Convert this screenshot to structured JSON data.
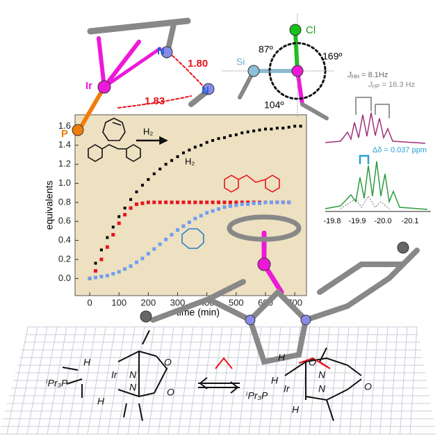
{
  "chart_data": {
    "type": "scatter",
    "x_label": "time (min)",
    "y_label": "equivalents",
    "annotations": [
      "H₂"
    ],
    "x": [
      0,
      20,
      40,
      60,
      80,
      100,
      120,
      140,
      160,
      180,
      200,
      220,
      240,
      260,
      280,
      300,
      320,
      340,
      360,
      380,
      400,
      420,
      440,
      460,
      480,
      500,
      520,
      540,
      560,
      580,
      600,
      620,
      640,
      660,
      680,
      700,
      720
    ],
    "series": [
      {
        "name": "H₂",
        "color": "#000000",
        "values": [
          0,
          0.16,
          0.3,
          0.43,
          0.54,
          0.65,
          0.74,
          0.83,
          0.91,
          0.98,
          1.04,
          1.1,
          1.15,
          1.2,
          1.24,
          1.28,
          1.32,
          1.35,
          1.38,
          1.4,
          1.43,
          1.45,
          1.47,
          1.48,
          1.5,
          1.51,
          1.53,
          1.54,
          1.55,
          1.56,
          1.57,
          1.57,
          1.58,
          1.58,
          1.59,
          1.6,
          1.6
        ]
      },
      {
        "color": "#e8141c",
        "values": [
          0,
          0.08,
          0.2,
          0.33,
          0.46,
          0.58,
          0.67,
          0.74,
          0.78,
          0.79,
          0.8,
          0.8,
          0.8,
          0.8,
          0.8,
          0.8,
          0.8,
          0.8,
          0.8,
          0.8,
          0.8,
          0.8,
          0.8,
          0.8,
          0.8,
          0.8,
          0.8,
          0.8,
          0.8,
          0.8,
          0.8,
          0.8,
          0.8,
          0.8,
          0.8,
          null,
          null
        ]
      },
      {
        "color": "#6f9ef0",
        "values": [
          0,
          0.01,
          0.02,
          0.03,
          0.05,
          0.07,
          0.1,
          0.13,
          0.17,
          0.21,
          0.26,
          0.31,
          0.36,
          0.41,
          0.46,
          0.51,
          0.55,
          0.59,
          0.63,
          0.66,
          0.69,
          0.71,
          0.73,
          0.75,
          0.76,
          0.77,
          0.78,
          0.78,
          0.79,
          0.79,
          0.8,
          0.8,
          0.8,
          0.8,
          0.8,
          null,
          null
        ]
      }
    ],
    "xlim": [
      -50,
      740
    ],
    "ylim": [
      -0.18,
      1.72
    ],
    "xticks": [
      0,
      100,
      200,
      300,
      400,
      500,
      600,
      700
    ],
    "yticks": [
      {
        "value": 0,
        "label": "0.0"
      },
      0.2,
      0.4,
      0.6,
      0.8,
      {
        "value": 1,
        "label": "1.0"
      },
      1.2,
      1.4,
      1.6
    ]
  },
  "structure_labels": [
    "N",
    "1.80",
    "Ir",
    "1.83",
    "N",
    "P",
    "Cl",
    "Si",
    "87º",
    "169º",
    "104º"
  ],
  "nmr": {
    "coupling_hh": {
      "symbol": "J",
      "sub": "HH",
      "text": " = 8.1Hz"
    },
    "coupling_hp": {
      "symbol": "J",
      "sub": "HP",
      "text": " = 16.3 Hz"
    },
    "shift_difference": "Δδ = 0.037 ppm",
    "ticks": [
      "-19.8",
      "-19.9",
      "-20.0",
      "-20.1"
    ]
  },
  "scheme_labels": [
    "H",
    "ⁱPr₃P",
    "Ir",
    "H",
    "N",
    "N",
    "O",
    "O",
    "H",
    "ⁱPr₃P",
    "Ir",
    "H",
    "H",
    "O",
    "N",
    "N",
    "O"
  ]
}
